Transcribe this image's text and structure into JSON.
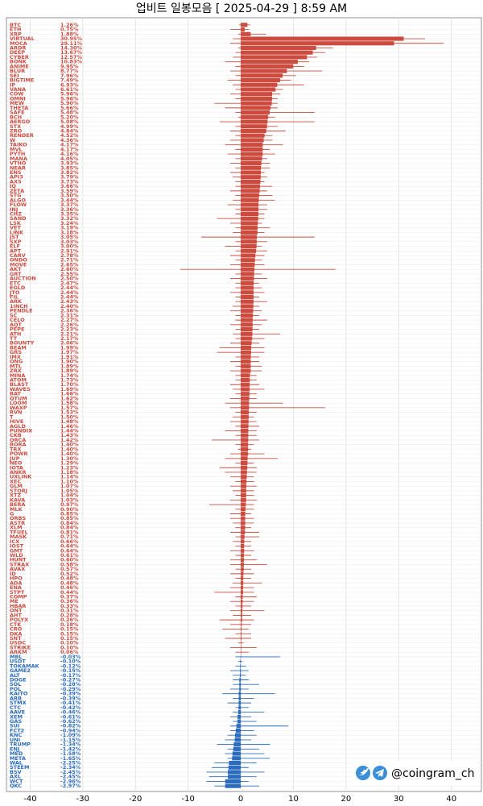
{
  "chart_data": {
    "type": "candle-bar",
    "title": "업비트 일봉모음 [ 2025-04-29 ]  8:59 AM",
    "categories": [
      "BTC",
      "ETH",
      "XRP",
      "VIRTUAL",
      "MOCA",
      "ARDR",
      "DEEP",
      "CYBER",
      "BONK",
      "ANIME",
      "BLUR",
      "SEI",
      "BIGTIME",
      "IP",
      "VANA",
      "COW",
      "OMNI",
      "MEW",
      "THETA",
      "SAFE",
      "BCH",
      "AERGO",
      "STX",
      "ZRO",
      "RENDER",
      "W",
      "TAIKO",
      "MVL",
      "PYTH",
      "MANA",
      "VTHO",
      "NEAR",
      "ENS",
      "API3",
      "AXS",
      "IQ",
      "ZETA",
      "STG",
      "ALGO",
      "FLOW",
      "INJ",
      "CHZ",
      "SAND",
      "LSK",
      "VET",
      "LINK",
      "JST",
      "SXP",
      "ELF",
      "APT",
      "CARV",
      "ONDO",
      "MOVE",
      "AKT",
      "GRT",
      "AUCTION",
      "ETC",
      "EGLD",
      "JTO",
      "FIL",
      "ARK",
      "1INCH",
      "PENDLE",
      "SC",
      "CELO",
      "AQT",
      "PEPE",
      "ATH",
      "TT",
      "BOUNTY",
      "BEAM",
      "GRS",
      "IMX",
      "ONG",
      "MTL",
      "ZRX",
      "MINA",
      "ATOM",
      "BLAST",
      "WAVES",
      "BAT",
      "QTUM",
      "LOOM",
      "WAXP",
      "RVN",
      "T",
      "HIVE",
      "AGLD",
      "PUNDIX",
      "CKB",
      "ORCA",
      "BORA",
      "TRX",
      "POWR",
      "JUP",
      "NEO",
      "IOTA",
      "ANKR",
      "UXLINK",
      "XEC",
      "GLM",
      "STORJ",
      "XTZ",
      "KAVA",
      "BERA",
      "MLK",
      "G",
      "ORBS",
      "ASTR",
      "XLM",
      "TFUEL",
      "MASK",
      "ICX",
      "IOST",
      "GMT",
      "WLD",
      "HUNT",
      "STRAX",
      "AVAX",
      "ID",
      "HPO",
      "ADA",
      "ENA",
      "STPT",
      "COMP",
      "ME",
      "HBAR",
      "ONT",
      "AHT",
      "POLYX",
      "CTK",
      "CRO",
      "DKA",
      "SNT",
      "USDC",
      "STRIKE",
      "ARKM",
      "MBL",
      "USDT",
      "TOKAMAK",
      "GAME2",
      "ALT",
      "DOGE",
      "SOL",
      "POL",
      "KAITO",
      "ARB",
      "STMX",
      "CTC",
      "AAVE",
      "XEM",
      "GAS",
      "SUI",
      "FCT2",
      "KNC",
      "UNI",
      "TRUMP",
      "ENJ",
      "MED",
      "META",
      "WAL",
      "STEEM",
      "BSV",
      "AXL",
      "WCT",
      "QKC"
    ],
    "values": [
      1.26,
      0.75,
      1.88,
      30.95,
      29.11,
      14.3,
      13.67,
      12.57,
      10.83,
      9.95,
      8.77,
      7.96,
      7.49,
      6.93,
      6.61,
      5.96,
      5.96,
      5.9,
      5.66,
      5.48,
      5.2,
      5.08,
      4.99,
      4.84,
      4.52,
      4.36,
      4.17,
      4.17,
      4.16,
      4.05,
      3.93,
      3.85,
      3.82,
      3.79,
      3.73,
      3.66,
      3.59,
      3.5,
      3.44,
      3.37,
      3.36,
      3.35,
      3.32,
      3.24,
      3.19,
      3.18,
      3.05,
      3.03,
      3,
      2.91,
      2.78,
      2.71,
      2.65,
      2.6,
      2.55,
      2.5,
      2.47,
      2.44,
      2.44,
      2.44,
      2.43,
      2.4,
      2.36,
      2.31,
      2.27,
      2.26,
      2.23,
      2.21,
      2.17,
      2.06,
      1.99,
      1.97,
      1.91,
      1.9,
      1.89,
      1.89,
      1.74,
      1.73,
      1.7,
      1.69,
      1.66,
      1.62,
      1.58,
      1.57,
      1.53,
      1.5,
      1.48,
      1.46,
      1.44,
      1.43,
      1.42,
      1.4,
      1.4,
      1.4,
      1.3,
      1.29,
      1.23,
      1.18,
      1.14,
      1.1,
      1.07,
      1.05,
      1.04,
      1.03,
      0.97,
      0.9,
      0.85,
      0.85,
      0.84,
      0.84,
      0.81,
      0.71,
      0.66,
      0.64,
      0.64,
      0.61,
      0.6,
      0.58,
      0.57,
      0.52,
      0.48,
      0.48,
      0.46,
      0.44,
      0.37,
      0.36,
      0.33,
      0.31,
      0.28,
      0.26,
      0.18,
      0.15,
      0.15,
      0.15,
      0.1,
      0.1,
      0.06,
      -0.03,
      -0.1,
      -0.12,
      -0.15,
      -0.17,
      -0.27,
      -0.28,
      -0.29,
      -0.39,
      -0.39,
      -0.41,
      -0.42,
      -0.46,
      -0.61,
      -0.62,
      -0.82,
      -0.94,
      -1.09,
      -1.15,
      -1.34,
      -1.42,
      -1.58,
      -1.65,
      -2.25,
      -2.34,
      -2.45,
      -2.45,
      -2.96,
      -2.97
    ],
    "value_labels": [
      "1.26%",
      "0.75%",
      "1.88%",
      "30.95%",
      "29.11%",
      "14.30%",
      "13.67%",
      "12.57%",
      "10.83%",
      "9.95%",
      "8.77%",
      "7.96%",
      "7.49%",
      "6.93%",
      "6.61%",
      "5.96%",
      "5.96%",
      "5.90%",
      "5.66%",
      "5.48%",
      "5.20%",
      "5.08%",
      "4.99%",
      "4.84%",
      "4.52%",
      "4.36%",
      "4.17%",
      "4.17%",
      "4.16%",
      "4.05%",
      "3.93%",
      "3.85%",
      "3.82%",
      "3.79%",
      "3.73%",
      "3.66%",
      "3.59%",
      "3.50%",
      "3.44%",
      "3.37%",
      "3.36%",
      "3.35%",
      "3.32%",
      "3.24%",
      "3.19%",
      "3.18%",
      "3.05%",
      "3.03%",
      "3.00%",
      "2.91%",
      "2.78%",
      "2.71%",
      "2.65%",
      "2.60%",
      "2.55%",
      "2.50%",
      "2.47%",
      "2.44%",
      "2.44%",
      "2.44%",
      "2.43%",
      "2.40%",
      "2.36%",
      "2.31%",
      "2.27%",
      "2.26%",
      "2.23%",
      "2.21%",
      "2.17%",
      "2.06%",
      "1.99%",
      "1.97%",
      "1.91%",
      "1.90%",
      "1.89%",
      "1.89%",
      "1.74%",
      "1.73%",
      "1.70%",
      "1.69%",
      "1.66%",
      "1.62%",
      "1.58%",
      "1.57%",
      "1.53%",
      "1.50%",
      "1.48%",
      "1.46%",
      "1.44%",
      "1.43%",
      "1.42%",
      "1.40%",
      "1.40%",
      "1.40%",
      "1.30%",
      "1.29%",
      "1.23%",
      "1.18%",
      "1.14%",
      "1.10%",
      "1.07%",
      "1.05%",
      "1.04%",
      "1.03%",
      "0.97%",
      "0.90%",
      "0.85%",
      "0.85%",
      "0.84%",
      "0.84%",
      "0.81%",
      "0.71%",
      "0.66%",
      "0.64%",
      "0.64%",
      "0.61%",
      "0.60%",
      "0.58%",
      "0.57%",
      "0.52%",
      "0.48%",
      "0.48%",
      "0.46%",
      "0.44%",
      "0.37%",
      "0.36%",
      "0.33%",
      "0.31%",
      "0.28%",
      "0.26%",
      "0.18%",
      "0.15%",
      "0.15%",
      "0.15%",
      "0.10%",
      "0.10%",
      "0.06%",
      "-0.03%",
      "-0.10%",
      "-0.12%",
      "-0.15%",
      "-0.17%",
      "-0.27%",
      "-0.28%",
      "-0.29%",
      "-0.39%",
      "-0.39%",
      "-0.41%",
      "-0.42%",
      "-0.46%",
      "-0.61%",
      "-0.62%",
      "-0.82%",
      "-0.94%",
      "-1.09%",
      "-1.15%",
      "-1.34%",
      "-1.42%",
      "-1.58%",
      "-1.65%",
      "-2.25%",
      "-2.34%",
      "-2.45%",
      "-2.45%",
      "-2.96%",
      "-2.97%"
    ],
    "high": [
      1.8,
      1.6,
      4.8,
      35,
      38.5,
      17.5,
      16,
      14.5,
      13,
      12,
      15.5,
      10.5,
      9.5,
      12,
      8,
      7.5,
      7,
      7,
      7,
      14,
      6.5,
      14,
      7,
      8.5,
      6,
      6,
      8,
      5.5,
      6.5,
      5,
      5.5,
      5.5,
      4.5,
      5,
      4.5,
      6,
      5,
      6,
      6.5,
      5,
      5,
      4.5,
      4.5,
      4,
      5.5,
      4.5,
      14,
      5,
      4,
      5,
      4.5,
      4,
      4.5,
      18,
      4,
      5,
      3.5,
      4,
      4.5,
      3.5,
      5,
      3.5,
      4,
      3.5,
      5,
      4,
      3.5,
      7.5,
      4.5,
      3.5,
      4.5,
      4.5,
      3.5,
      3.5,
      4,
      4,
      3,
      3,
      3.5,
      4.5,
      3,
      3,
      8,
      16,
      3,
      2.5,
      3,
      3.5,
      3,
      3,
      3.5,
      2.5,
      2,
      4.5,
      7,
      2.5,
      3,
      3,
      2.5,
      2.5,
      3,
      2.5,
      2.5,
      3,
      2.5,
      2.5,
      2,
      2.5,
      2.5,
      2,
      3.5,
      3.5,
      2,
      2,
      2.5,
      2,
      3,
      5,
      2,
      2.5,
      2,
      4,
      2.5,
      2.5,
      3,
      2.5,
      2,
      4.5,
      2,
      2.5,
      2,
      1.5,
      2,
      2,
      0.5,
      3,
      1.5,
      7.5,
      0.3,
      1,
      1.5,
      1,
      1.5,
      3.5,
      1.5,
      6.5,
      2.5,
      2,
      1.5,
      4.5,
      2,
      3,
      9,
      2.5,
      3,
      2,
      5.5,
      3.5,
      4.5,
      5.5,
      3,
      1.5,
      4.5,
      3,
      1.5,
      3.5
    ],
    "low": [
      -0.3,
      -2,
      -0.5,
      -1.5,
      -2,
      -0.5,
      -1,
      -1.5,
      -3,
      -1,
      -2,
      -1,
      -2.5,
      -1.5,
      -1,
      -2,
      -1,
      -5,
      -3,
      -1,
      -0.5,
      -4,
      -1,
      -2,
      -1,
      -2,
      -3,
      -1,
      -2.5,
      -1,
      -2,
      -1,
      -2,
      -1.5,
      -1,
      -1,
      -2,
      -1,
      -1.5,
      -2.5,
      -1,
      -1,
      -4.5,
      -2,
      -1,
      -1.5,
      -7.5,
      -1,
      -3,
      -1,
      -2,
      -1,
      -2,
      -11.5,
      -1,
      -2,
      -1,
      -1,
      -2,
      -1,
      -1,
      -1.5,
      -2,
      -1,
      -1,
      -2,
      -1,
      -1.5,
      -1,
      -2,
      -4,
      -4.5,
      -1,
      -2,
      -1,
      -2,
      -1,
      -1,
      -2,
      -1.5,
      -1,
      -2,
      -3,
      -2,
      -1,
      -1.5,
      -2,
      -1,
      -3,
      -1,
      -5.5,
      -1,
      -0.5,
      -2,
      -3,
      -1,
      -4,
      -3,
      -2,
      -1,
      -2,
      -1.5,
      -1,
      -2,
      -6,
      -1,
      -2,
      -2,
      -1.5,
      -1,
      -2,
      -1,
      -1.5,
      -1,
      -2,
      -1,
      -2,
      -2,
      -1,
      -2,
      -1,
      -1.5,
      -2,
      -5,
      -1,
      -2,
      -1,
      -2,
      -1.5,
      -4,
      -2,
      -3.5,
      -1,
      -3,
      -0.5,
      -2,
      -1,
      -1,
      -0.5,
      -1,
      -2,
      -1.5,
      -1.5,
      -1.5,
      -2,
      -3.5,
      -1.5,
      -2.5,
      -1,
      -1.5,
      -2,
      -1.5,
      -2,
      -2,
      -2.5,
      -3,
      -4.5,
      -2.5,
      -3,
      -2.5,
      -5,
      -5.5,
      -6.5,
      -6,
      -6.5,
      -5
    ],
    "up_color": "#cc4b3f",
    "down_color": "#2c6cbd",
    "xlim": [
      -44.5,
      45.7
    ],
    "xticks": [
      -40,
      -30,
      -20,
      -10,
      0,
      10,
      20,
      30,
      40
    ],
    "grid": true
  },
  "watermark": "@coingram_ch"
}
